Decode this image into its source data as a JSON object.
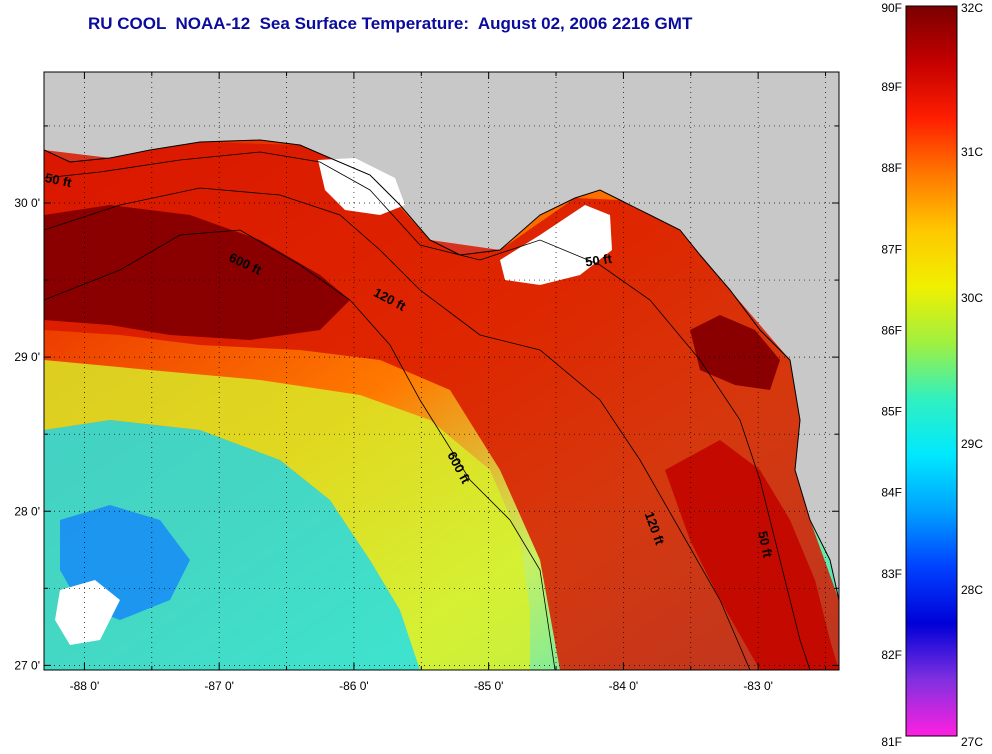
{
  "title": "RU COOL  NOAA-12  Sea Surface Temperature:  August 02, 2006 2216 GMT",
  "map": {
    "lon_min": -88.3,
    "lon_max": -82.4,
    "lat_min": 26.97,
    "lat_max": 30.85,
    "lon_ticks": [
      {
        "value": -88,
        "label": "-88 0'"
      },
      {
        "value": -87,
        "label": "-87 0'"
      },
      {
        "value": -86,
        "label": "-86 0'"
      },
      {
        "value": -85,
        "label": "-85 0'"
      },
      {
        "value": -84,
        "label": "-84 0'"
      },
      {
        "value": -83,
        "label": "-83 0'"
      }
    ],
    "lat_ticks": [
      {
        "value": 30,
        "label": "30 0'"
      },
      {
        "value": 29,
        "label": "29 0'"
      },
      {
        "value": 28,
        "label": "28 0'"
      },
      {
        "value": 27,
        "label": "27 0'"
      }
    ],
    "land_color": "#c8c8c8",
    "contour_labels": [
      {
        "text": "50 ft",
        "lon": -88.2,
        "lat": 30.12,
        "angle": 12
      },
      {
        "text": "600 ft",
        "lon": -86.82,
        "lat": 29.58,
        "angle": 25
      },
      {
        "text": "120 ft",
        "lon": -85.75,
        "lat": 29.35,
        "angle": 28
      },
      {
        "text": "50 ft",
        "lon": -84.18,
        "lat": 29.6,
        "angle": -8
      },
      {
        "text": "600 ft",
        "lon": -85.25,
        "lat": 28.27,
        "angle": 62
      },
      {
        "text": "120 ft",
        "lon": -83.8,
        "lat": 27.88,
        "angle": 70
      },
      {
        "text": "50 ft",
        "lon": -82.98,
        "lat": 27.78,
        "angle": 78
      }
    ]
  },
  "colorbar": {
    "f_labels": [
      "90F",
      "89F",
      "88F",
      "87F",
      "86F",
      "85F",
      "84F",
      "83F",
      "82F",
      "81F"
    ],
    "c_labels": [
      "32C",
      "31C",
      "30C",
      "29C",
      "28C",
      "27C"
    ],
    "f_min": 81,
    "f_max": 90,
    "c_min": 27,
    "c_max": 32,
    "gradient": [
      "#7a0000",
      "#c40000",
      "#ff1e00",
      "#ff7800",
      "#ffc800",
      "#f0f000",
      "#a0f040",
      "#30f0c0",
      "#00e8ff",
      "#00a0ff",
      "#0040ff",
      "#0000d8",
      "#8030e0",
      "#ff20e0"
    ]
  }
}
